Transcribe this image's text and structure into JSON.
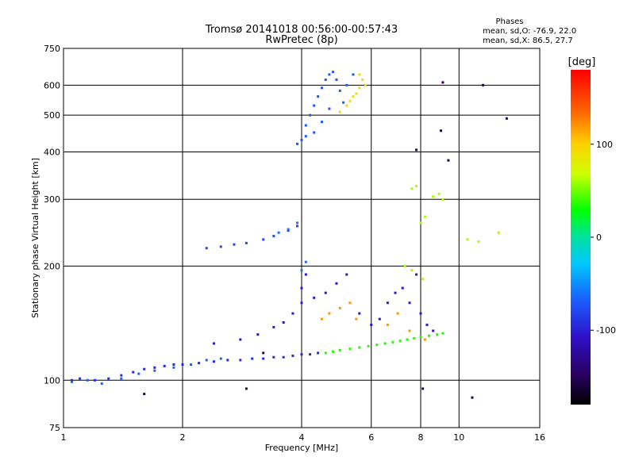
{
  "chart_data": {
    "type": "scatter",
    "title": "Tromsø 20141018 00:56:00-00:57:43",
    "subtitle": "RwPretec (8p)",
    "xlabel": "Frequency [MHz]",
    "ylabel": "Stationary phase Virtual Height [km]",
    "x_scale": "log",
    "y_scale": "log",
    "xlim": [
      1,
      16
    ],
    "ylim": [
      75,
      750
    ],
    "xticks": [
      1,
      2,
      4,
      6,
      8,
      10,
      16
    ],
    "yticks": [
      75,
      100,
      200,
      300,
      400,
      500,
      600,
      750
    ],
    "grid": true,
    "colorbar": {
      "label": "[deg]",
      "ticks": [
        100,
        0,
        -100
      ],
      "range": [
        -180,
        180
      ]
    },
    "annotation": {
      "title": "Phases",
      "line1": "mean, sd,O: -76.9, 22.0",
      "line2": "mean, sd,X:  86.5, 27.7"
    },
    "series": [
      {
        "cluster": "low-F-trace",
        "phase": -95,
        "points": [
          [
            1.05,
            100
          ],
          [
            1.1,
            101
          ],
          [
            1.2,
            100
          ],
          [
            1.3,
            101
          ],
          [
            1.4,
            103
          ],
          [
            1.5,
            105
          ],
          [
            1.6,
            107
          ],
          [
            1.7,
            108
          ],
          [
            1.8,
            109
          ],
          [
            1.9,
            110
          ],
          [
            2.0,
            110
          ],
          [
            2.2,
            111
          ],
          [
            2.4,
            112
          ],
          [
            2.6,
            113
          ],
          [
            2.8,
            113
          ],
          [
            3.0,
            114
          ],
          [
            3.2,
            114
          ],
          [
            3.4,
            115
          ],
          [
            3.6,
            115
          ],
          [
            3.8,
            116
          ],
          [
            4.0,
            117
          ],
          [
            4.2,
            117
          ],
          [
            4.4,
            118
          ]
        ]
      },
      {
        "cluster": "low-F-trace-cyan",
        "phase": -65,
        "points": [
          [
            1.05,
            99
          ],
          [
            1.15,
            100
          ],
          [
            1.25,
            98
          ],
          [
            1.4,
            101
          ],
          [
            1.55,
            104
          ],
          [
            1.7,
            106
          ],
          [
            1.9,
            108
          ],
          [
            2.1,
            110
          ],
          [
            2.3,
            113
          ],
          [
            2.5,
            114
          ]
        ]
      },
      {
        "cluster": "x-mode-trace",
        "phase": 35,
        "points": [
          [
            4.6,
            118
          ],
          [
            4.8,
            119
          ],
          [
            5.0,
            120
          ],
          [
            5.3,
            121
          ],
          [
            5.6,
            122
          ],
          [
            5.9,
            123
          ],
          [
            6.2,
            124
          ],
          [
            6.5,
            125
          ],
          [
            6.8,
            126
          ],
          [
            7.1,
            127
          ],
          [
            7.4,
            128
          ],
          [
            7.7,
            129
          ],
          [
            8.0,
            130
          ],
          [
            8.4,
            131
          ],
          [
            8.8,
            132
          ],
          [
            9.1,
            133
          ]
        ]
      },
      {
        "cluster": "mid-spread",
        "phase": -105,
        "points": [
          [
            2.4,
            125
          ],
          [
            2.8,
            128
          ],
          [
            3.1,
            132
          ],
          [
            3.4,
            138
          ],
          [
            3.6,
            142
          ],
          [
            3.8,
            150
          ],
          [
            4.0,
            160
          ],
          [
            4.0,
            175
          ],
          [
            4.1,
            190
          ],
          [
            4.3,
            165
          ],
          [
            4.6,
            170
          ],
          [
            4.9,
            180
          ],
          [
            5.2,
            190
          ],
          [
            5.6,
            150
          ],
          [
            6.0,
            140
          ],
          [
            6.3,
            145
          ],
          [
            6.6,
            160
          ],
          [
            6.9,
            170
          ],
          [
            7.2,
            175
          ],
          [
            7.5,
            160
          ],
          [
            7.8,
            190
          ],
          [
            8.0,
            150
          ],
          [
            8.3,
            140
          ],
          [
            8.6,
            135
          ]
        ]
      },
      {
        "cluster": "mid-spread-orange",
        "phase": 120,
        "points": [
          [
            4.5,
            145
          ],
          [
            4.7,
            150
          ],
          [
            5.0,
            155
          ],
          [
            5.3,
            160
          ],
          [
            5.5,
            145
          ],
          [
            6.6,
            140
          ],
          [
            7.0,
            150
          ],
          [
            7.5,
            135
          ],
          [
            8.2,
            128
          ]
        ]
      },
      {
        "cluster": "upper-F-trace",
        "phase": -80,
        "points": [
          [
            2.3,
            223
          ],
          [
            2.5,
            225
          ],
          [
            2.7,
            228
          ],
          [
            2.9,
            230
          ],
          [
            3.2,
            235
          ],
          [
            3.4,
            240
          ],
          [
            3.7,
            248
          ],
          [
            3.9,
            255
          ]
        ]
      },
      {
        "cluster": "upper-F-trace-cyan",
        "phase": -60,
        "points": [
          [
            3.5,
            245
          ],
          [
            3.7,
            250
          ],
          [
            3.9,
            260
          ],
          [
            4.0,
            195
          ],
          [
            4.1,
            205
          ]
        ]
      },
      {
        "cluster": "sporadic-upper",
        "phase": 60,
        "points": [
          [
            7.6,
            320
          ],
          [
            7.8,
            325
          ],
          [
            8.0,
            260
          ],
          [
            8.2,
            270
          ],
          [
            8.6,
            305
          ],
          [
            8.9,
            310
          ],
          [
            9.1,
            300
          ],
          [
            10.5,
            235
          ],
          [
            11.2,
            232
          ],
          [
            12.6,
            245
          ],
          [
            7.3,
            200
          ],
          [
            7.6,
            195
          ],
          [
            8.1,
            185
          ]
        ]
      },
      {
        "cluster": "high-echo-O",
        "phase": -70,
        "points": [
          [
            3.9,
            420
          ],
          [
            4.0,
            430
          ],
          [
            4.1,
            440
          ],
          [
            4.1,
            470
          ],
          [
            4.2,
            500
          ],
          [
            4.3,
            530
          ],
          [
            4.4,
            560
          ],
          [
            4.5,
            590
          ],
          [
            4.6,
            620
          ],
          [
            4.7,
            640
          ],
          [
            4.8,
            650
          ],
          [
            4.9,
            620
          ],
          [
            5.0,
            580
          ],
          [
            5.1,
            540
          ],
          [
            5.2,
            600
          ],
          [
            5.4,
            640
          ],
          [
            4.3,
            450
          ],
          [
            4.5,
            480
          ],
          [
            4.7,
            520
          ]
        ]
      },
      {
        "cluster": "high-echo-X",
        "phase": 95,
        "points": [
          [
            5.0,
            510
          ],
          [
            5.2,
            530
          ],
          [
            5.4,
            560
          ],
          [
            5.6,
            590
          ],
          [
            5.7,
            620
          ],
          [
            5.8,
            600
          ],
          [
            5.5,
            570
          ],
          [
            5.3,
            545
          ],
          [
            5.6,
            640
          ]
        ]
      },
      {
        "cluster": "isolated",
        "phase": -150,
        "points": [
          [
            9.0,
            455
          ],
          [
            7.8,
            405
          ],
          [
            11.5,
            600
          ],
          [
            13.2,
            490
          ],
          [
            9.1,
            610
          ],
          [
            9.4,
            380
          ],
          [
            1.6,
            92
          ],
          [
            2.9,
            95
          ],
          [
            10.8,
            90
          ],
          [
            8.1,
            95
          ],
          [
            3.2,
            118
          ]
        ]
      }
    ]
  }
}
